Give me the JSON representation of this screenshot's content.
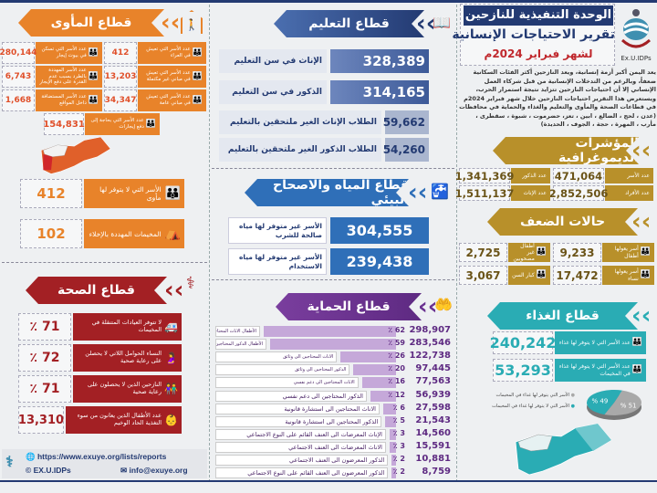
{
  "colors": {
    "shelter": "#e8832a",
    "health": "#a32024",
    "education": "#2e4a8a",
    "water": "#2f6fb8",
    "protection": "#7a3e9e",
    "demographic": "#b8902a",
    "food": "#2aacb4"
  },
  "header": {
    "org": "الوحدة التنفيذية للنازحين",
    "title": "تقرير الاحتياجات الإنسانية",
    "period": "لشهر فبراير 2024م",
    "logo_text": "Ex.U.IDPs",
    "intro": "يعد اليمن أكبر أزمة إنسانية، ويعد النازحين أكثر الفئات السكانية ضعفاً، وبالرغم من التدخلات الإنسانية من قبل شركاء العمل الإنساني إلا أن احتياجات النازحين تتزايد نتيجة استمرار الحرب، ويستعرض هذا التقرير احتياجات النازحين خلال شهر فبراير 2024م في قطاعات الصحة والمأوى والتعليم والغذاء والحماية في محافظات (عدن ، لحج ، الضالع ، ابين ، تعز، حضرموت ، شبوة ، سقطرى ، مأرب ، المهرة ، حجة ، الجوف ، الحديدة)"
  },
  "demographic": {
    "title": "المؤشرات الديموغرافية",
    "items": [
      {
        "label": "عدد الأسر",
        "value": "471,064",
        "icon": "family-icon"
      },
      {
        "label": "عدد الذكور",
        "value": "1,341,369",
        "icon": "male-icon"
      },
      {
        "label": "عدد الأفراد",
        "value": "2,852,506",
        "icon": "person-walking-icon"
      },
      {
        "label": "عدد الإناث",
        "value": "1,511,137",
        "icon": "female-icon"
      }
    ]
  },
  "vulnerability": {
    "title": "حالات الضعف",
    "items": [
      {
        "label": "أسر يعولها أطفال",
        "value": "9,233"
      },
      {
        "label": "أطفال غير مصحوبين",
        "value": "2,725"
      },
      {
        "label": "أسر يعولها نساء",
        "value": "17,472"
      },
      {
        "label": "كبار السن",
        "value": "3,067"
      }
    ]
  },
  "food": {
    "title": "قطاع الغذاء",
    "items": [
      {
        "label": "عدد الأسر التي لا يتوفر لها غذاء",
        "value": "240,242"
      },
      {
        "label": "عدد الأسر التي لا يتوفر لها غذاء في المخيمات",
        "value": "53,293"
      }
    ],
    "legend": [
      "الأسر التي يتوفر لها غذاء في المخيمات",
      "الأسر التي لا يتوفر لها غذاء في المخيمات"
    ],
    "pie": [
      {
        "label": "% 51",
        "value": 51,
        "color": "#a9a9a9"
      },
      {
        "label": "% 49",
        "value": 49,
        "color": "#2aacb4"
      }
    ]
  },
  "education": {
    "title": "قطاع التعليم",
    "items": [
      {
        "label": "الإناث في سن التعليم",
        "value": "328,389"
      },
      {
        "label": "الذكور في سن التعليم",
        "value": "314,165"
      },
      {
        "label": "الطلاب الإناث الغير ملتحقين بالتعليم",
        "value": "59,662"
      },
      {
        "label": "الطلاب الذكور الغير ملتحقين بالتعليم",
        "value": "54,260"
      }
    ]
  },
  "water": {
    "title": "قطاع المياه والاصحاح البيئي",
    "items": [
      {
        "label": "الأسر غير متوفر لها مياه صالحة للشرب",
        "value": "304,555"
      },
      {
        "label": "الأسر غير متوفر لها مياه الاستخدام",
        "value": "239,438"
      }
    ]
  },
  "protection": {
    "title": "قطاع الحماية",
    "rows": [
      {
        "label": "الأطفال الاناث المحتاجين الى مساحات صديقة",
        "pct": 62,
        "pct_label": "62 ٪",
        "value": "298,907"
      },
      {
        "label": "الأطفال الذكور المحتاجين الى مساحات صديقة",
        "pct": 59,
        "pct_label": "59 ٪",
        "value": "283,546"
      },
      {
        "label": "الاناث المحتاجين الى وثائق",
        "pct": 26,
        "pct_label": "26 ٪",
        "value": "122,738"
      },
      {
        "label": "الذكور المحتاجين الى وثائق",
        "pct": 20,
        "pct_label": "20 ٪",
        "value": "97,445"
      },
      {
        "label": "الاناث المحتاجين الى دعم نفسي",
        "pct": 16,
        "pct_label": "16 ٪",
        "value": "77,563"
      },
      {
        "label": "الذكور المحتاجين الى دعم نفسي",
        "pct": 12,
        "pct_label": "12 ٪",
        "value": "56,939"
      },
      {
        "label": "الاناث المحتاجين الى استشارة قانونية",
        "pct": 6,
        "pct_label": "6 ٪",
        "value": "27,598"
      },
      {
        "label": "الذكور المحتاجين الى استشارة قانونية",
        "pct": 5,
        "pct_label": "5 ٪",
        "value": "21,543"
      },
      {
        "label": "الإناث المعرضات الى العنف القائم على النوع الاجتماعي",
        "pct": 3,
        "pct_label": "3 ٪",
        "value": "14,560"
      },
      {
        "label": "الاناث المعرضات الى العنف الاجتماعي",
        "pct": 3,
        "pct_label": "3 ٪",
        "value": "15,591"
      },
      {
        "label": "الذكور المعرضون الى العنف الاجتماعي",
        "pct": 2,
        "pct_label": "2 ٪",
        "value": "10,881"
      },
      {
        "label": "الذكور المعرضون الى العنف القائم على النوع الاجتماعي",
        "pct": 2,
        "pct_label": "2 ٪",
        "value": "8,759"
      }
    ]
  },
  "shelter": {
    "title": "قطاع المأوى",
    "grid": [
      {
        "label": "عدد الأسر التي تعيش في العراء",
        "value": "412"
      },
      {
        "label": "عدد الأسر التي تسكن في بيوت إيجار",
        "value": "280,144"
      },
      {
        "label": "عدد الأسر التي تعيش في مباني غير مكتملة",
        "value": "13,203"
      },
      {
        "label": "عدد الأسر المهددة بالطرد بسبب عدم القدرة على دفع الإيجار",
        "value": "6,743"
      },
      {
        "label": "عدد الأسر التي تعيش في مباني عامة",
        "value": "34,347"
      },
      {
        "label": "عدد الأسر المستضافة داخل المواقع",
        "value": "1,668"
      }
    ],
    "rent": {
      "label": "عدد الأسر التي بحاجة إلى دفع إيجارات",
      "value": "154,831"
    },
    "homeless": {
      "label": "الأسر التي لا يتوفر لها مأوى",
      "value": "412"
    },
    "camps": {
      "label": "المخيمات المهددة بالإخلاء",
      "value": "102"
    }
  },
  "health": {
    "title": "قطاع الصحة",
    "items": [
      {
        "label": "لا تتوفر العيادات المتنقلة في المخيمات",
        "value": "71 ٪",
        "icon": "ambulance-icon"
      },
      {
        "label": "النساء الحوامل اللاتي لا يحصلن على رعاية صحية",
        "value": "72 ٪",
        "icon": "pregnant-woman-icon"
      },
      {
        "label": "النازحين الذين لا يحصلون على رعاية صحية",
        "value": "71 ٪",
        "icon": "people-icon"
      },
      {
        "label": "عدد الأطفال الذين يعانون من سوء التغذية الحاد الوخيم",
        "value": "13,310",
        "icon": "children-icon"
      }
    ]
  },
  "footer": {
    "url": "https://www.exuye.org/lists/reports",
    "handle": "EX.U.IDPs",
    "email": "info@exuye.org"
  }
}
